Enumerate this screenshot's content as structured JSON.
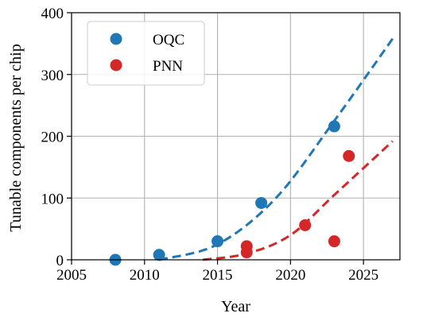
{
  "chart_data": {
    "type": "scatter",
    "xlabel": "Year",
    "ylabel": "Tunable components per chip",
    "xlim": [
      2005,
      2027.5
    ],
    "ylim": [
      0,
      400
    ],
    "xticks": [
      2005,
      2010,
      2015,
      2020,
      2025
    ],
    "yticks": [
      0,
      100,
      200,
      300,
      400
    ],
    "grid": true,
    "legend_position": "top-left",
    "series": [
      {
        "name": "OQC",
        "color": "#1f77b4",
        "points": [
          [
            2008,
            0
          ],
          [
            2011,
            8
          ],
          [
            2015,
            30
          ],
          [
            2018,
            92
          ],
          [
            2023,
            216
          ]
        ],
        "fit": {
          "style": "dashed",
          "points": [
            [
              2011,
              0
            ],
            [
              2015,
              25
            ],
            [
              2019,
              100
            ],
            [
              2023,
              225
            ],
            [
              2027,
              358
            ]
          ]
        }
      },
      {
        "name": "PNN",
        "color": "#d62728",
        "points": [
          [
            2017,
            12
          ],
          [
            2017,
            22
          ],
          [
            2021,
            56
          ],
          [
            2023,
            30
          ],
          [
            2024,
            168
          ]
        ],
        "fit": {
          "style": "dashed",
          "points": [
            [
              2014,
              0
            ],
            [
              2017,
              10
            ],
            [
              2020,
              40
            ],
            [
              2023,
              105
            ],
            [
              2027,
              192
            ]
          ]
        }
      }
    ]
  }
}
